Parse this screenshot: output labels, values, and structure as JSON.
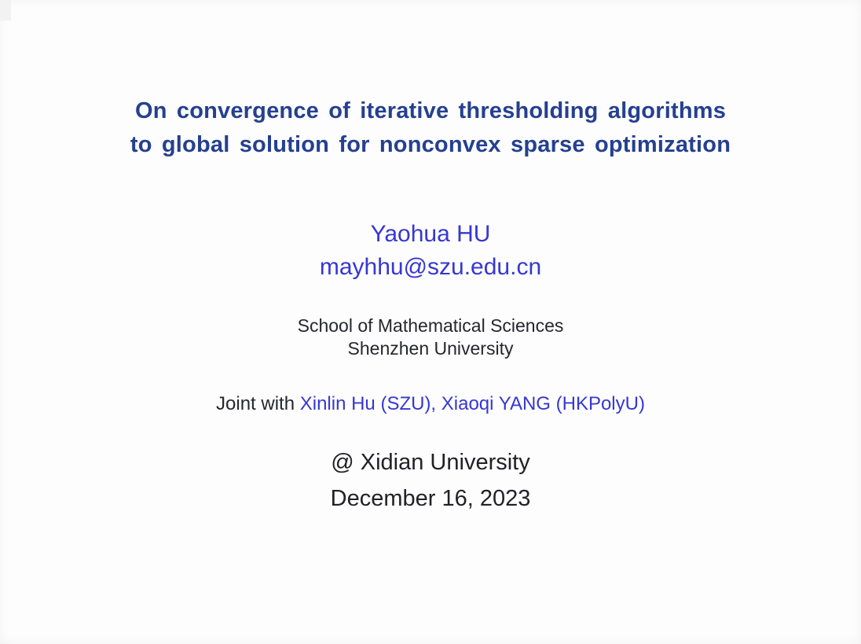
{
  "slide": {
    "title": {
      "line1": "On convergence of iterative thresholding algorithms",
      "line2": "to global solution for nonconvex sparse optimization"
    },
    "author": {
      "name": "Yaohua HU",
      "email": "mayhhu@szu.edu.cn"
    },
    "affiliation": {
      "line1": "School of Mathematical Sciences",
      "line2": "Shenzhen University"
    },
    "joint": {
      "prefix": "Joint with ",
      "collaborators": "Xinlin Hu (SZU), Xiaoqi YANG (HKPolyU)"
    },
    "venue": "@ Xidian University",
    "date": "December 16, 2023",
    "colors": {
      "title_navy": "#254090",
      "accent_blue": "#3737d2",
      "body_text": "#26262e",
      "background": "#fdfdfe"
    }
  }
}
